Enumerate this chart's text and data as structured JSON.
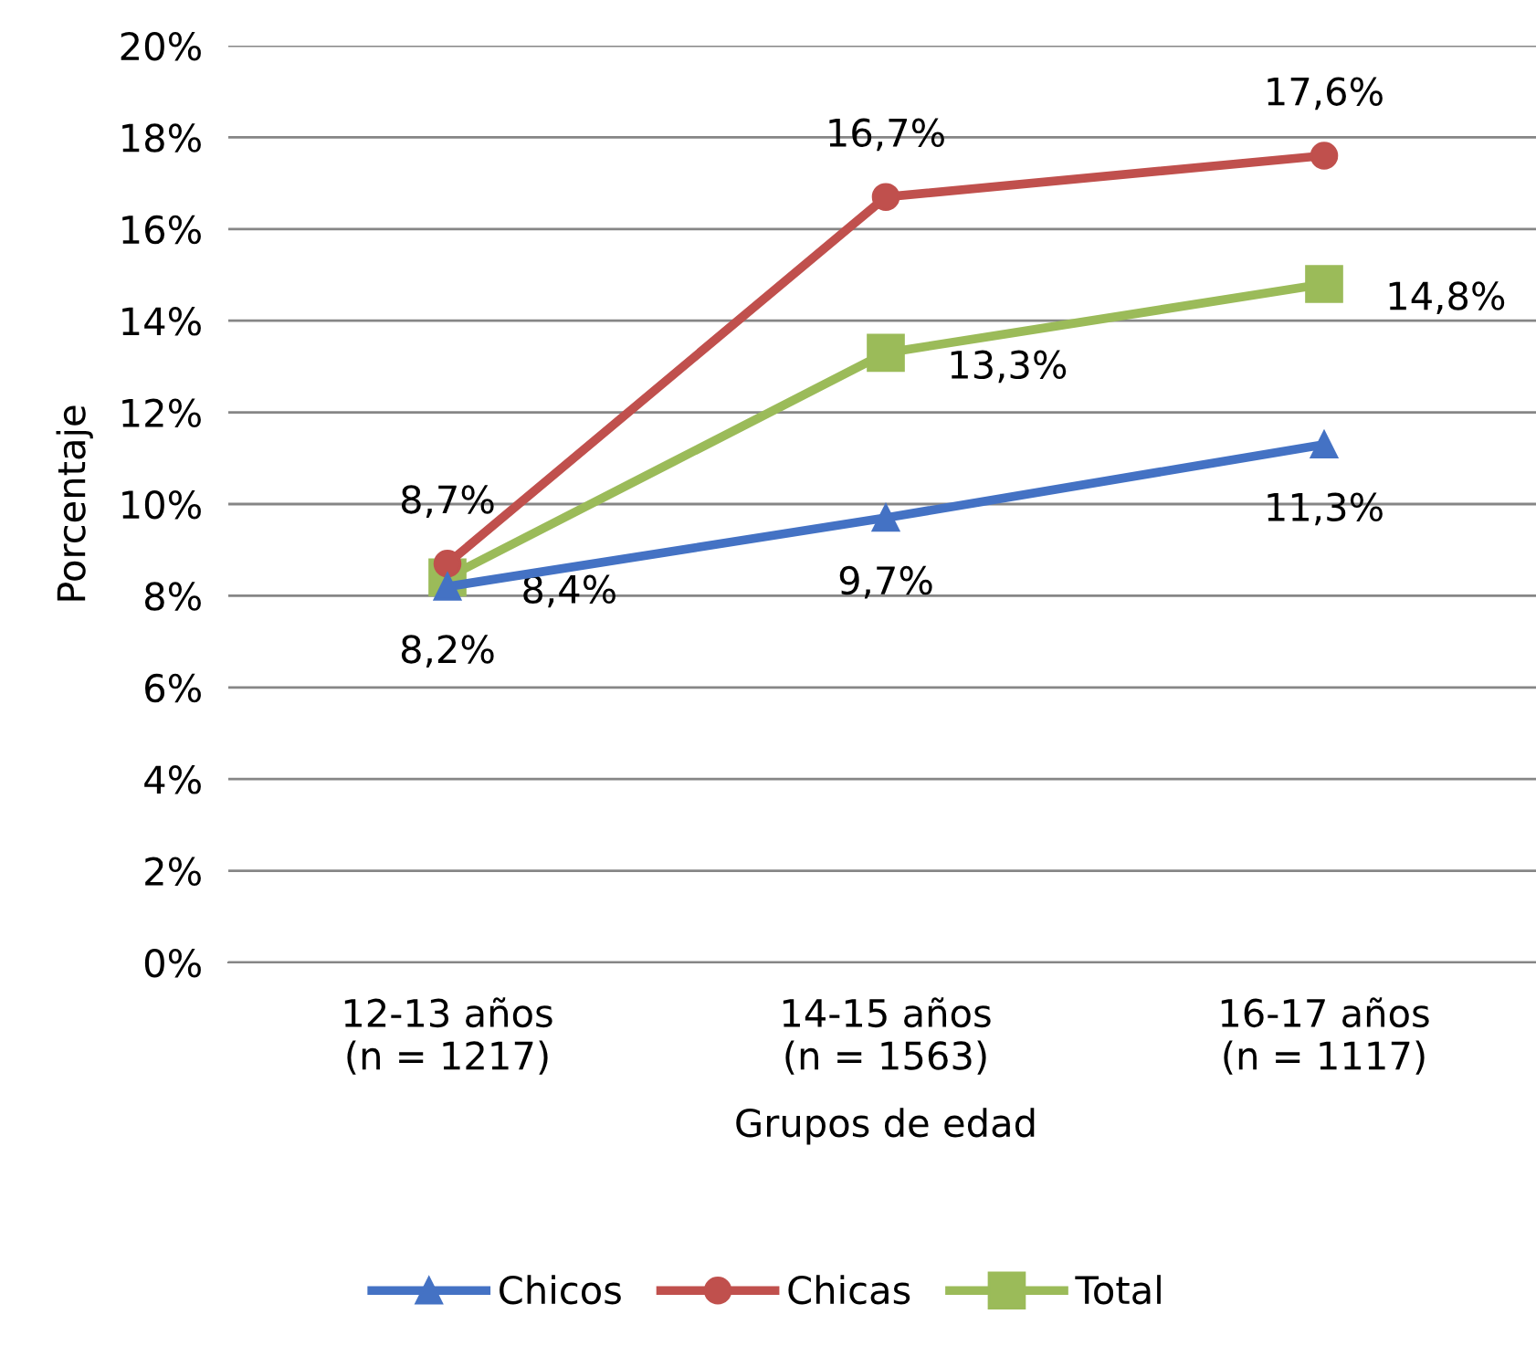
{
  "chart_data": {
    "type": "line",
    "xlabel": "Grupos de edad",
    "ylabel": "Porcentaje",
    "categories": [
      "12-13 años\n(n = 1217)",
      "14-15 años\n(n = 1563)",
      "16-17 años\n(n = 1117)"
    ],
    "series": [
      {
        "name": "Chicos",
        "color": "#4472c4",
        "marker": "triangle",
        "values": [
          8.2,
          9.7,
          11.3
        ],
        "value_labels": [
          "8,2%",
          "9,7%",
          "11,3%"
        ]
      },
      {
        "name": "Chicas",
        "color": "#c0504d",
        "marker": "circle",
        "values": [
          8.7,
          16.7,
          17.6
        ],
        "value_labels": [
          "8,7%",
          "16,7%",
          "17,6%"
        ]
      },
      {
        "name": "Total",
        "color": "#9bbb59",
        "marker": "square",
        "values": [
          8.4,
          13.3,
          14.8
        ],
        "value_labels": [
          "8,4%",
          "13,3%",
          "14,8%"
        ]
      }
    ],
    "ylim": [
      0,
      20
    ],
    "yticks": [
      {
        "value": 0,
        "label": "0%"
      },
      {
        "value": 2,
        "label": "2%"
      },
      {
        "value": 4,
        "label": "4%"
      },
      {
        "value": 6,
        "label": "6%"
      },
      {
        "value": 8,
        "label": "8%"
      },
      {
        "value": 10,
        "label": "10%"
      },
      {
        "value": 12,
        "label": "12%"
      },
      {
        "value": 14,
        "label": "14%"
      },
      {
        "value": 16,
        "label": "16%"
      },
      {
        "value": 18,
        "label": "18%"
      },
      {
        "value": 20,
        "label": "20%"
      }
    ],
    "grid": "y",
    "legend": "bottom",
    "line_style": "solid"
  }
}
